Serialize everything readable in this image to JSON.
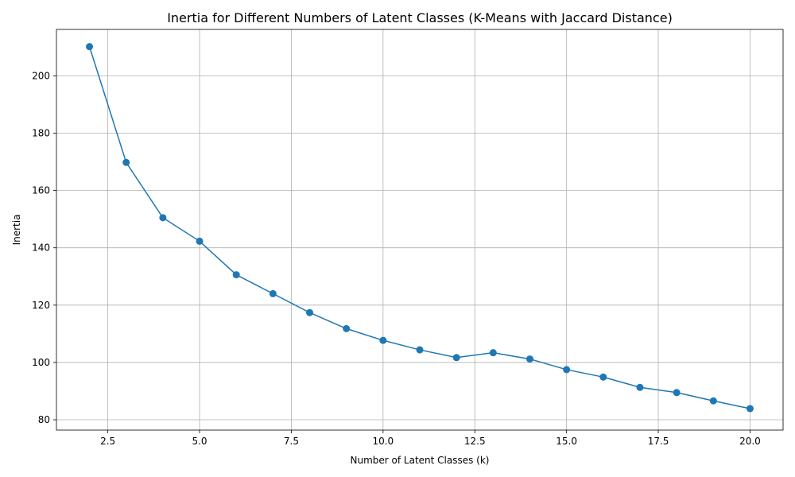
{
  "chart_data": {
    "type": "line",
    "title": "Inertia for Different Numbers of Latent Classes (K-Means with Jaccard Distance)",
    "xlabel": "Number of Latent Classes (k)",
    "ylabel": "Inertia",
    "xlim": [
      1.1,
      20.9
    ],
    "ylim": [
      76.4,
      216.2
    ],
    "xticks": [
      2.5,
      5.0,
      7.5,
      10.0,
      12.5,
      15.0,
      17.5,
      20.0
    ],
    "xtick_labels": [
      "2.5",
      "5.0",
      "7.5",
      "10.0",
      "12.5",
      "15.0",
      "17.5",
      "20.0"
    ],
    "yticks": [
      80,
      100,
      120,
      140,
      160,
      180,
      200
    ],
    "ytick_labels": [
      "80",
      "100",
      "120",
      "140",
      "160",
      "180",
      "200"
    ],
    "grid": true,
    "color": "#1f77b4",
    "x": [
      2,
      3,
      4,
      5,
      6,
      7,
      8,
      9,
      10,
      11,
      12,
      13,
      14,
      15,
      16,
      17,
      18,
      19,
      20
    ],
    "y": [
      210.2,
      169.8,
      150.5,
      142.3,
      130.6,
      124.0,
      117.4,
      111.8,
      107.7,
      104.4,
      101.7,
      103.4,
      101.2,
      97.5,
      94.9,
      91.3,
      89.5,
      86.6,
      83.9
    ]
  }
}
